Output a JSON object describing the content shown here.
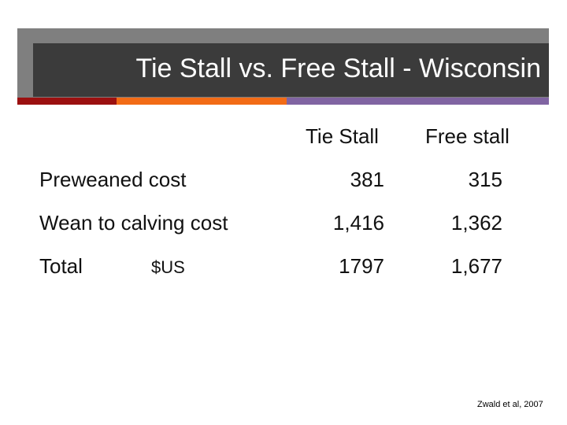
{
  "header": {
    "title": "Tie Stall vs. Free Stall - Wisconsin"
  },
  "table": {
    "columns": [
      "Tie Stall",
      "Free stall"
    ],
    "rows": [
      {
        "label": "Preweaned cost",
        "values": [
          "381",
          "315"
        ]
      },
      {
        "label": "Wean to calving cost",
        "values": [
          "1,416",
          "1,362"
        ]
      },
      {
        "label": "Total",
        "unit": "$US",
        "values": [
          "1797",
          "1,677"
        ]
      }
    ]
  },
  "citation": "Zwald et al, 2007"
}
